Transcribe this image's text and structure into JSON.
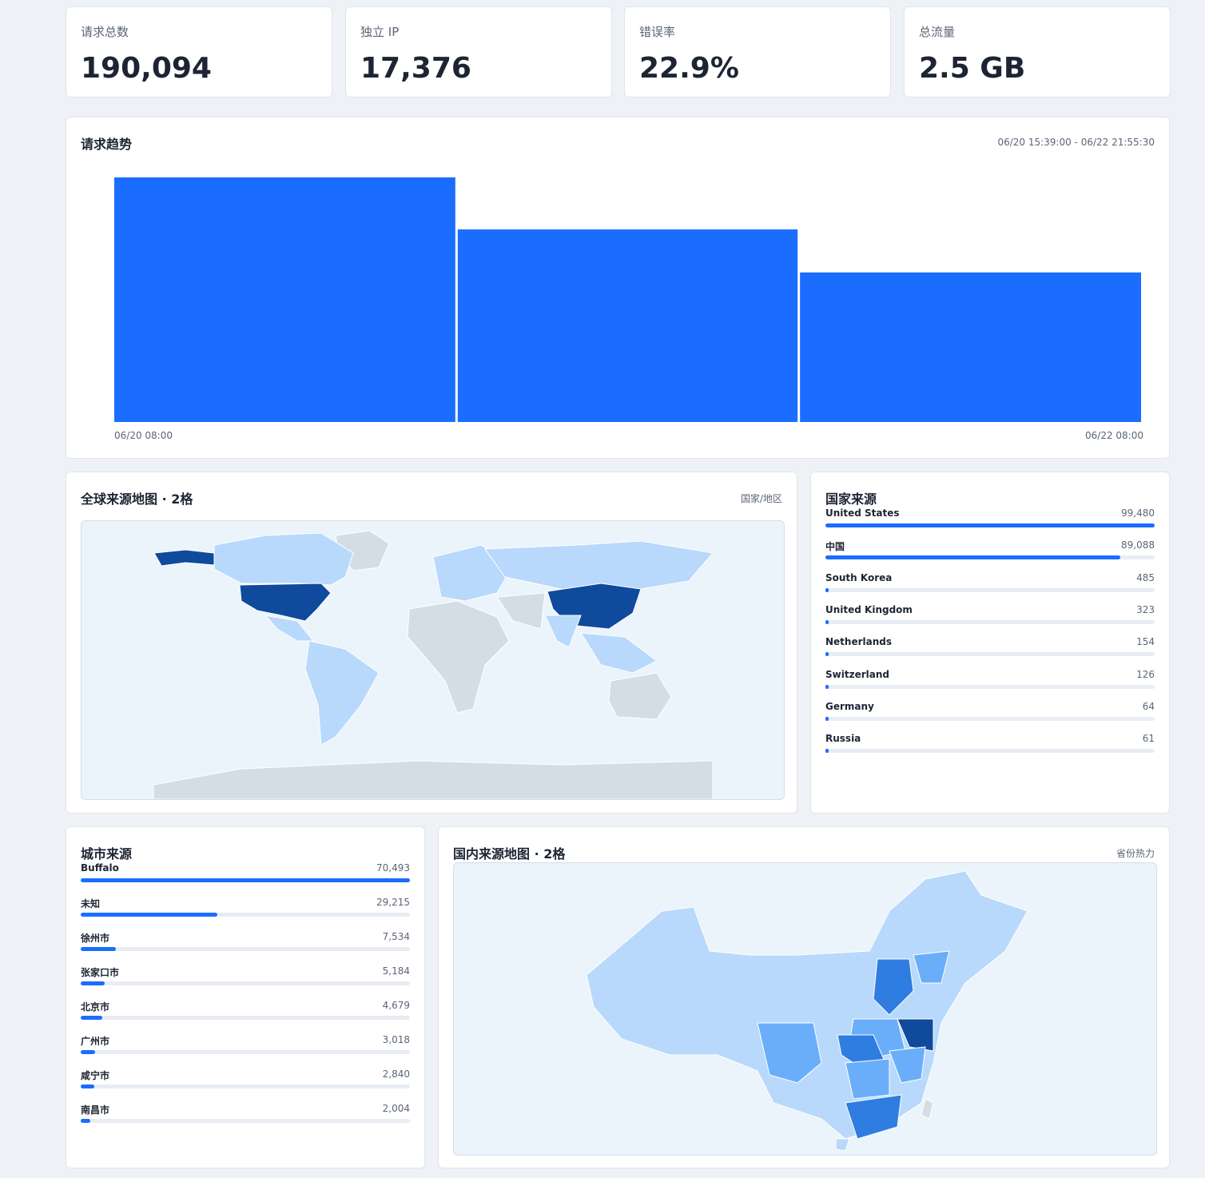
{
  "stats": [
    {
      "label": "请求总数",
      "value": "190,094"
    },
    {
      "label": "独立 IP",
      "value": "17,376"
    },
    {
      "label": "错误率",
      "value": "22.9%"
    },
    {
      "label": "总流量",
      "value": "2.5 GB"
    }
  ],
  "chart_data": {
    "type": "bar",
    "title": "请求趋势",
    "subtitle": "06/20 15:39:00 - 06/22 21:55:30",
    "categories": [
      "06/20 08:00",
      null,
      "06/22 08:00"
    ],
    "values": [
      79250,
      62400,
      48450
    ],
    "color": "#1a6dff"
  },
  "world_map": {
    "title": "全球来源地图 · 2格",
    "subtitle": "国家/地区"
  },
  "countries": {
    "title": "国家来源",
    "names": [
      "United States",
      "中国",
      "South Korea",
      "United Kingdom",
      "Netherlands",
      "Switzerland",
      "Germany",
      "Russia"
    ],
    "values": [
      99480,
      89088,
      485,
      323,
      154,
      126,
      64,
      61
    ],
    "value_labels": [
      "99,480",
      "89,088",
      "485",
      "323",
      "154",
      "126",
      "64",
      "61"
    ]
  },
  "cities": {
    "title": "城市来源",
    "names": [
      "Buffalo",
      "未知",
      "徐州市",
      "张家口市",
      "北京市",
      "广州市",
      "咸宁市",
      "南昌市"
    ],
    "values": [
      70493,
      29215,
      7534,
      5184,
      4679,
      3018,
      2840,
      2004
    ],
    "value_labels": [
      "70,493",
      "29,215",
      "7,534",
      "5,184",
      "4,679",
      "3,018",
      "2,840",
      "2,004"
    ]
  },
  "china_map": {
    "title": "国内来源地图 · 2格",
    "subtitle": "省份热力"
  }
}
